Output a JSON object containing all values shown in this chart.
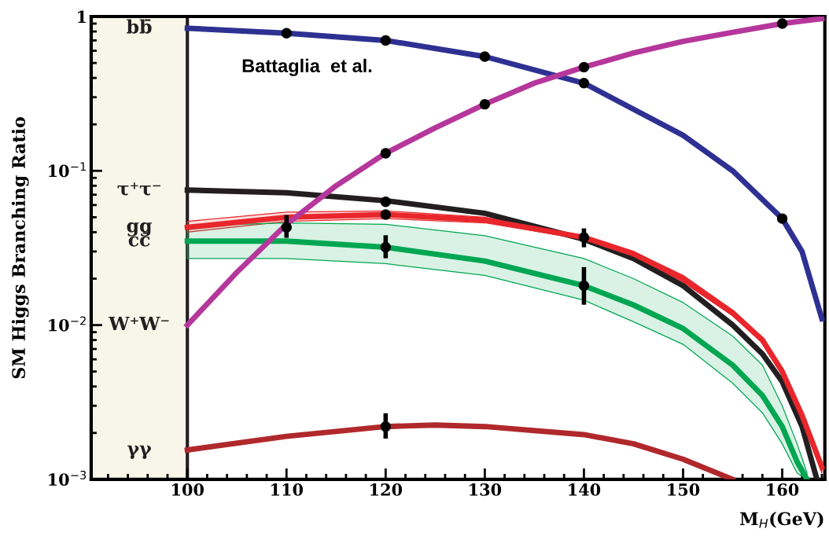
{
  "chart_data": {
    "type": "line",
    "xlabel": "M$_{H}$(GeV)",
    "ylabel": "SM Higgs Branching Ratio",
    "annotations": [
      "Battaglia  et al."
    ],
    "log": "y",
    "legend": false,
    "line_style": "solid",
    "xlim": [
      90.3,
      164.3
    ],
    "xticks": [
      100,
      110,
      120,
      130,
      140,
      150,
      160
    ],
    "ylim": [
      0.001,
      1
    ],
    "yticks": [
      {
        "value": 0.001,
        "label": "10$^{−3}$"
      },
      {
        "value": 0.01,
        "label": "10$^{−2}$"
      },
      {
        "value": 0.1,
        "label": "10$^{−1}$"
      },
      1
    ],
    "bands": [
      {
        "axis": "x",
        "from": 90.3,
        "to": 100,
        "color": "#f7f6e9"
      }
    ],
    "series": [
      {
        "name": "bb̄",
        "color": "#2e3192",
        "x": [
          100,
          110,
          120,
          130,
          140,
          150,
          155,
          160,
          162,
          164
        ],
        "values": [
          0.84,
          0.78,
          0.7,
          0.55,
          0.37,
          0.17,
          0.1,
          0.049,
          0.03,
          0.011
        ]
      },
      {
        "name": "τ⁺τ⁻",
        "color": "#231f20",
        "x": [
          100,
          110,
          120,
          130,
          140,
          145,
          150,
          155,
          158,
          160,
          162,
          163.5
        ],
        "values": [
          0.075,
          0.072,
          0.064,
          0.053,
          0.036,
          0.027,
          0.018,
          0.01,
          0.0065,
          0.0043,
          0.0022,
          0.001
        ]
      },
      {
        "name": "gg",
        "color": "#e8262b",
        "x": [
          100,
          110,
          120,
          130,
          140,
          145,
          150,
          155,
          158,
          160,
          162,
          164
        ],
        "values": [
          0.043,
          0.05,
          0.052,
          0.048,
          0.037,
          0.029,
          0.02,
          0.012,
          0.008,
          0.005,
          0.0026,
          0.0012
        ],
        "upper": [
          0.047,
          0.054,
          0.055,
          0.05,
          0.038,
          0.03,
          0.021,
          0.0125,
          0.0083,
          0.0052,
          0.0027,
          0.0013
        ],
        "lower": [
          0.04,
          0.047,
          0.049,
          0.046,
          0.036,
          0.028,
          0.019,
          0.0115,
          0.0077,
          0.0048,
          0.0025,
          0.0011
        ]
      },
      {
        "name": "cc̄",
        "color": "#00a651",
        "x": [
          100,
          110,
          120,
          130,
          140,
          145,
          150,
          155,
          158,
          160,
          161.5,
          162.5
        ],
        "values": [
          0.035,
          0.035,
          0.032,
          0.026,
          0.018,
          0.0135,
          0.0095,
          0.0055,
          0.0035,
          0.0022,
          0.0013,
          0.001
        ],
        "upper": [
          0.044,
          0.046,
          0.045,
          0.038,
          0.027,
          0.02,
          0.014,
          0.0085,
          0.0055,
          0.003,
          0.0017,
          0.0011
        ],
        "lower": [
          0.027,
          0.027,
          0.025,
          0.021,
          0.0145,
          0.0105,
          0.0075,
          0.0042,
          0.0027,
          0.0017,
          0.0011,
          0.001
        ]
      },
      {
        "name": "W⁺W⁻",
        "color": "#b5379b",
        "x": [
          100,
          105,
          110,
          115,
          120,
          125,
          130,
          135,
          140,
          145,
          150,
          155,
          160,
          164
        ],
        "values": [
          0.01,
          0.022,
          0.045,
          0.08,
          0.13,
          0.19,
          0.27,
          0.37,
          0.47,
          0.58,
          0.69,
          0.79,
          0.9,
          0.97
        ]
      },
      {
        "name": "γγ",
        "color": "#b0282b",
        "x": [
          100,
          110,
          120,
          125,
          130,
          140,
          145,
          150,
          155
        ],
        "values": [
          0.00155,
          0.0019,
          0.0022,
          0.00225,
          0.0022,
          0.00195,
          0.0017,
          0.00135,
          0.001
        ]
      },
      {
        "type": "scatter",
        "marker": "circle",
        "color": "#000000",
        "x": [
          110,
          120,
          130,
          140,
          160,
          120,
          130,
          140,
          160,
          120,
          120,
          140,
          110,
          120,
          140,
          120
        ],
        "values": [
          0.78,
          0.7,
          0.55,
          0.37,
          0.049,
          0.13,
          0.27,
          0.47,
          0.9,
          0.063,
          0.052,
          0.037,
          0.043,
          0.032,
          0.018,
          0.0022
        ],
        "errors": [
          null,
          null,
          null,
          null,
          null,
          null,
          null,
          null,
          null,
          null,
          null,
          [
            0.033,
            0.041
          ],
          [
            0.038,
            0.05
          ],
          [
            0.028,
            0.037
          ],
          [
            0.014,
            0.023
          ],
          [
            0.0019,
            0.0026
          ]
        ]
      }
    ]
  }
}
